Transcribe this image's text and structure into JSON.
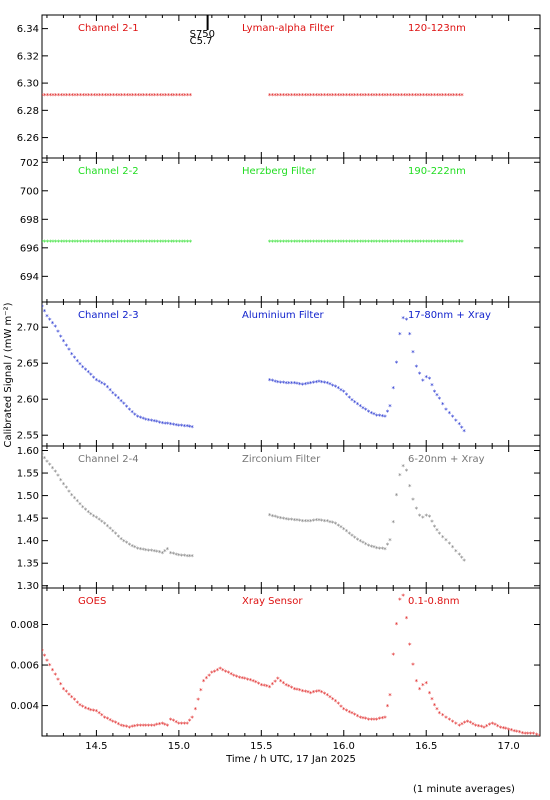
{
  "chart_data": [
    {
      "type": "scatter",
      "panel": "channel-2-1",
      "labels": [
        "Channel 2-1",
        "Lyman-alpha Filter",
        "120-123nm"
      ],
      "color": "#dd1111",
      "ylim": [
        6.245,
        6.35
      ],
      "yticks": [
        6.26,
        6.28,
        6.3,
        6.32,
        6.34
      ],
      "ytick_labels": [
        "6.26",
        "6.28",
        "6.30",
        "6.32",
        "6.34"
      ],
      "annotation": {
        "x": 15.15,
        "texts": [
          "S750",
          "C5.7"
        ]
      },
      "series": [
        {
          "x": [
            14.17,
            15.08
          ],
          "y": [
            6.291,
            6.291
          ],
          "style": "flat"
        },
        {
          "x": [
            15.55,
            16.73
          ],
          "y": [
            6.291,
            6.291
          ],
          "style": "flat"
        }
      ]
    },
    {
      "type": "scatter",
      "panel": "channel-2-2",
      "labels": [
        "Channel 2-2",
        "Herzberg Filter",
        "190-222nm"
      ],
      "color": "#22dd22",
      "ylim": [
        692.2,
        702.3
      ],
      "yticks": [
        694,
        696,
        698,
        700,
        702
      ],
      "ytick_labels": [
        "694",
        "696",
        "698",
        "700",
        "702"
      ],
      "series": [
        {
          "x": [
            14.17,
            15.08
          ],
          "y": [
            696.4,
            696.4
          ],
          "style": "flat"
        },
        {
          "x": [
            15.55,
            16.73
          ],
          "y": [
            696.4,
            696.4
          ],
          "style": "flat"
        }
      ]
    },
    {
      "type": "scatter",
      "panel": "channel-2-3",
      "labels": [
        "Channel 2-3",
        "Aluminium Filter",
        "17-80nm + Xray"
      ],
      "color": "#1122cc",
      "ylim": [
        2.535,
        2.735
      ],
      "yticks": [
        2.55,
        2.6,
        2.65,
        2.7
      ],
      "ytick_labels": [
        "2.55",
        "2.60",
        "2.65",
        "2.70"
      ],
      "series": [
        {
          "x": [
            14.17,
            14.2,
            14.25,
            14.3,
            14.35,
            14.4,
            14.45,
            14.5,
            14.55,
            14.6,
            14.65,
            14.7,
            14.75,
            14.8,
            14.85,
            14.9,
            14.95,
            15.0,
            15.05,
            15.08
          ],
          "y": [
            2.728,
            2.715,
            2.7,
            2.68,
            2.662,
            2.648,
            2.637,
            2.626,
            2.62,
            2.608,
            2.597,
            2.585,
            2.575,
            2.571,
            2.569,
            2.566,
            2.565,
            2.563,
            2.562,
            2.561
          ]
        },
        {
          "x": [
            15.55,
            15.6,
            15.65,
            15.7,
            15.75,
            15.8,
            15.85,
            15.9,
            15.95,
            16.0,
            16.05,
            16.1,
            16.15,
            16.2,
            16.25,
            16.28,
            16.3,
            16.32,
            16.34,
            16.36,
            16.38,
            16.4,
            16.42,
            16.44,
            16.46,
            16.48,
            16.5,
            16.52,
            16.55,
            16.58,
            16.62,
            16.66,
            16.7,
            16.73
          ],
          "y": [
            2.626,
            2.623,
            2.622,
            2.622,
            2.62,
            2.622,
            2.624,
            2.622,
            2.617,
            2.61,
            2.598,
            2.59,
            2.582,
            2.577,
            2.575,
            2.59,
            2.615,
            2.65,
            2.69,
            2.712,
            2.71,
            2.69,
            2.665,
            2.645,
            2.635,
            2.625,
            2.63,
            2.628,
            2.61,
            2.6,
            2.585,
            2.575,
            2.565,
            2.555
          ]
        }
      ]
    },
    {
      "type": "scatter",
      "panel": "channel-2-4",
      "labels": [
        "Channel 2-4",
        "Zirconium Filter",
        "6-20nm + Xray"
      ],
      "color": "#777777",
      "ylim": [
        1.295,
        1.61
      ],
      "yticks": [
        1.3,
        1.35,
        1.4,
        1.45,
        1.5,
        1.55,
        1.6
      ],
      "ytick_labels": [
        "1.30",
        "1.35",
        "1.40",
        "1.45",
        "1.50",
        "1.55",
        "1.60"
      ],
      "series": [
        {
          "x": [
            14.17,
            14.2,
            14.25,
            14.3,
            14.35,
            14.4,
            14.45,
            14.5,
            14.55,
            14.6,
            14.65,
            14.7,
            14.75,
            14.8,
            14.85,
            14.9,
            14.93,
            14.95,
            15.0,
            15.05,
            15.08
          ],
          "y": [
            1.59,
            1.575,
            1.552,
            1.525,
            1.5,
            1.48,
            1.462,
            1.45,
            1.437,
            1.42,
            1.403,
            1.39,
            1.382,
            1.378,
            1.376,
            1.372,
            1.38,
            1.372,
            1.367,
            1.365,
            1.365
          ]
        },
        {
          "x": [
            15.55,
            15.6,
            15.65,
            15.7,
            15.75,
            15.8,
            15.85,
            15.9,
            15.95,
            16.0,
            16.05,
            16.1,
            16.15,
            16.2,
            16.25,
            16.28,
            16.3,
            16.32,
            16.34,
            16.36,
            16.38,
            16.4,
            16.42,
            16.44,
            16.46,
            16.48,
            16.5,
            16.52,
            16.55,
            16.58,
            16.62,
            16.66,
            16.7,
            16.73
          ],
          "y": [
            1.456,
            1.45,
            1.447,
            1.445,
            1.443,
            1.443,
            1.445,
            1.442,
            1.437,
            1.425,
            1.41,
            1.398,
            1.388,
            1.383,
            1.38,
            1.4,
            1.44,
            1.5,
            1.545,
            1.565,
            1.555,
            1.52,
            1.49,
            1.47,
            1.455,
            1.45,
            1.455,
            1.452,
            1.43,
            1.415,
            1.4,
            1.385,
            1.368,
            1.355
          ]
        }
      ]
    },
    {
      "type": "scatter",
      "panel": "goes",
      "labels": [
        "GOES",
        "Xray Sensor",
        "0.1-0.8nm"
      ],
      "color": "#dd1111",
      "ylim": [
        0.0025,
        0.0098
      ],
      "yticks": [
        0.004,
        0.006,
        0.008
      ],
      "ytick_labels": [
        "0.004",
        "0.006",
        "0.008"
      ],
      "series": [
        {
          "x": [
            14.17,
            14.2,
            14.25,
            14.3,
            14.35,
            14.4,
            14.45,
            14.5,
            14.55,
            14.6,
            14.65,
            14.7,
            14.75,
            14.8,
            14.85,
            14.9,
            14.93,
            14.95,
            15.0,
            15.05,
            15.08,
            15.1,
            15.15,
            15.2,
            15.25,
            15.3,
            15.35,
            15.4,
            15.45,
            15.5,
            15.55,
            15.6,
            15.65,
            15.7,
            15.75,
            15.8,
            15.85,
            15.9,
            15.95,
            16.0,
            16.05,
            16.1,
            16.15,
            16.2,
            16.25,
            16.28,
            16.3,
            16.32,
            16.34,
            16.36,
            16.38,
            16.4,
            16.42,
            16.44,
            16.46,
            16.48,
            16.5,
            16.52,
            16.55,
            16.58,
            16.62,
            16.66,
            16.7,
            16.75,
            16.8,
            16.85,
            16.9,
            16.95,
            17.0,
            17.05,
            17.1,
            17.15,
            17.19
          ],
          "y": [
            0.0067,
            0.0062,
            0.0055,
            0.0048,
            0.0044,
            0.004,
            0.0038,
            0.0037,
            0.0034,
            0.0032,
            0.003,
            0.0029,
            0.003,
            0.003,
            0.003,
            0.0031,
            0.003,
            0.0033,
            0.0031,
            0.0031,
            0.0034,
            0.0038,
            0.0052,
            0.0056,
            0.0058,
            0.0056,
            0.0054,
            0.0053,
            0.0052,
            0.005,
            0.0049,
            0.0053,
            0.005,
            0.0048,
            0.0047,
            0.0046,
            0.0047,
            0.0045,
            0.0042,
            0.0038,
            0.0036,
            0.0034,
            0.0033,
            0.0033,
            0.0034,
            0.0045,
            0.0065,
            0.008,
            0.0092,
            0.0094,
            0.0083,
            0.007,
            0.006,
            0.0052,
            0.0048,
            0.005,
            0.0051,
            0.0046,
            0.004,
            0.0036,
            0.0034,
            0.0032,
            0.003,
            0.0032,
            0.003,
            0.0029,
            0.0031,
            0.0029,
            0.0028,
            0.0027,
            0.0026,
            0.0026,
            0.0025
          ]
        }
      ]
    }
  ],
  "x_axis": {
    "xlim": [
      14.17,
      17.19
    ],
    "ticks": [
      14.5,
      15.0,
      15.5,
      16.0,
      16.5,
      17.0
    ],
    "tick_labels": [
      "14.5",
      "15.0",
      "15.5",
      "16.0",
      "16.5",
      "17.0"
    ],
    "label": "Time / h UTC, 17 Jan 2025"
  },
  "y_axis_label": "Calibrated Signal / (mW m⁻²)",
  "note": "(1 minute averages)"
}
